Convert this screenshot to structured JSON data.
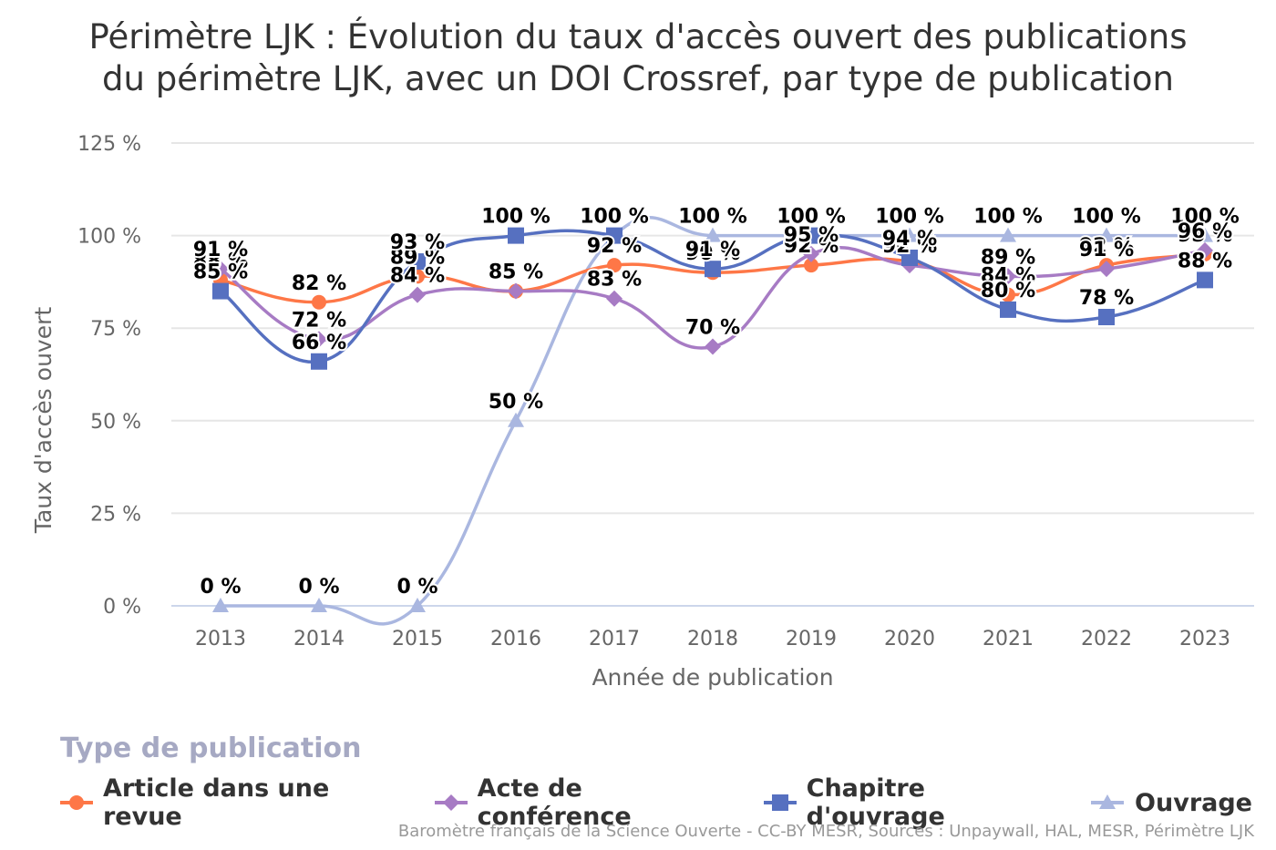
{
  "title_line1": "Périmètre LJK : Évolution du taux d'accès ouvert des publications",
  "title_line2": "du périmètre LJK, avec un DOI Crossref, par type de publication",
  "legend_title": "Type de publication",
  "credits": "Baromètre français de la Science Ouverte - CC-BY MESR, Sources : Unpaywall, HAL, MESR, Périmètre LJK",
  "chart_data": {
    "type": "line",
    "title": "Périmètre LJK : Évolution du taux d'accès ouvert des publications du périmètre LJK, avec un DOI Crossref, par type de publication",
    "xlabel": "Année de publication",
    "ylabel": "Taux d'accès ouvert",
    "x": [
      "2013",
      "2014",
      "2015",
      "2016",
      "2017",
      "2018",
      "2019",
      "2020",
      "2021",
      "2022",
      "2023"
    ],
    "ylim": [
      0,
      125
    ],
    "yticks": [
      0,
      25,
      50,
      75,
      100,
      125
    ],
    "ytick_labels": [
      "0 %",
      "25 %",
      "50 %",
      "75 %",
      "100 %",
      "125 %"
    ],
    "grid": true,
    "legend_position": "bottom-left",
    "series": [
      {
        "name": "Article dans une revue",
        "color": "#fe7747",
        "marker": "circle",
        "values": [
          88,
          82,
          89,
          85,
          92,
          90,
          92,
          93,
          84,
          92,
          95
        ]
      },
      {
        "name": "Acte de conférence",
        "color": "#a77bc4",
        "marker": "diamond",
        "values": [
          91,
          72,
          84,
          85,
          83,
          70,
          95,
          92,
          89,
          91,
          96
        ]
      },
      {
        "name": "Chapitre d'ouvrage",
        "color": "#5670c0",
        "marker": "square",
        "values": [
          85,
          66,
          93,
          100,
          100,
          91,
          100,
          94,
          80,
          78,
          88
        ]
      },
      {
        "name": "Ouvrage",
        "color": "#aab7e0",
        "marker": "triangle",
        "values": [
          0,
          0,
          0,
          50,
          100,
          100,
          100,
          100,
          100,
          100,
          100
        ]
      }
    ]
  }
}
